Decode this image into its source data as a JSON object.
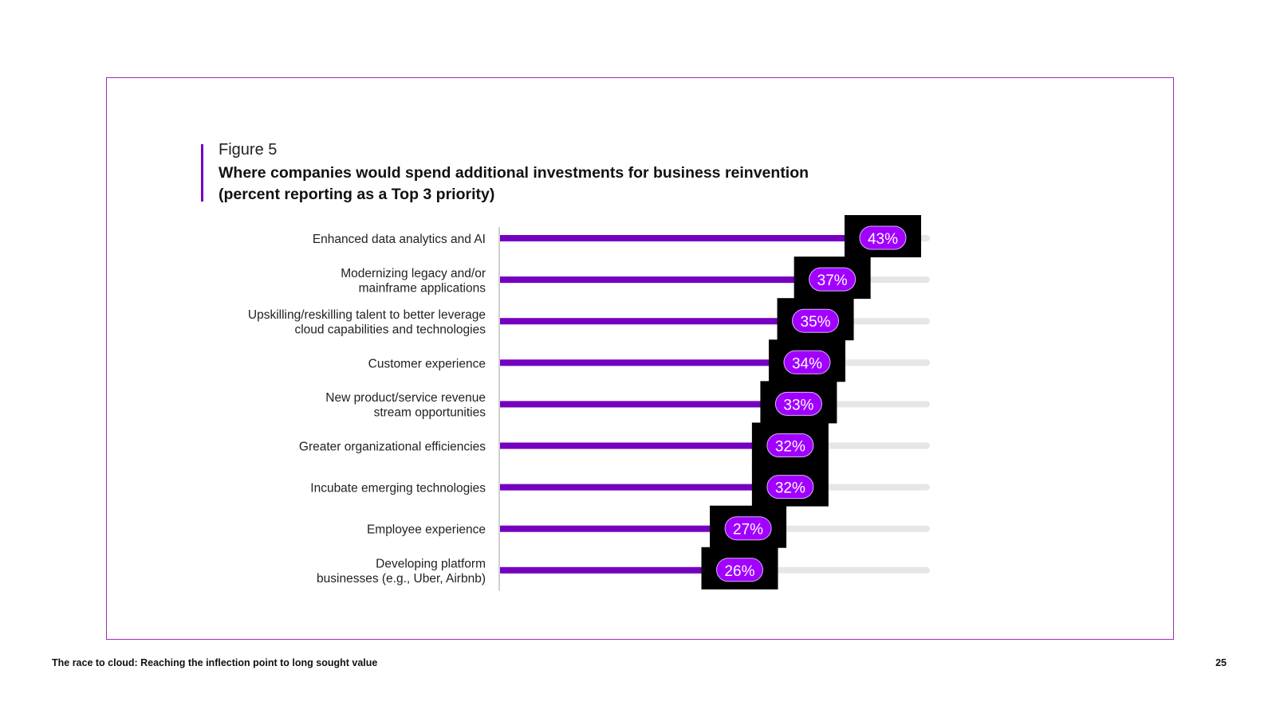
{
  "page": {
    "figure_label": "Figure 5",
    "title_line1": "Where companies would spend additional investments for business reinvention",
    "title_line2": "(percent reporting as a Top 3 priority)",
    "footer_text": "The race to cloud:  Reaching the inflection point to long sought value",
    "page_number": "25"
  },
  "colors": {
    "accent": "#7500c0",
    "badge": "#a100ff",
    "track": "#e6e6e6",
    "badge_box": "#000000",
    "frame": "#9b2fb4"
  },
  "chart_data": {
    "type": "bar",
    "orientation": "horizontal",
    "title": "Where companies would spend additional investments for business reinvention (percent reporting as a Top 3 priority)",
    "categories": [
      [
        "Enhanced data analytics and AI"
      ],
      [
        "Modernizing legacy and/or",
        "mainframe applications"
      ],
      [
        "Upskilling/reskilling talent to better leverage",
        "cloud capabilities and technologies"
      ],
      [
        "Customer experience"
      ],
      [
        "New product/service revenue",
        "stream opportunities"
      ],
      [
        "Greater organizational efficiencies"
      ],
      [
        "Incubate emerging technologies"
      ],
      [
        "Employee experience"
      ],
      [
        "Developing platform",
        "businesses (e.g., Uber, Airbnb)"
      ]
    ],
    "values": [
      43,
      37,
      35,
      34,
      33,
      32,
      32,
      27,
      26
    ],
    "value_labels": [
      "43%",
      "37%",
      "35%",
      "34%",
      "33%",
      "32%",
      "32%",
      "27%",
      "26%"
    ],
    "xlim": [
      0,
      50
    ],
    "unit": "%"
  }
}
